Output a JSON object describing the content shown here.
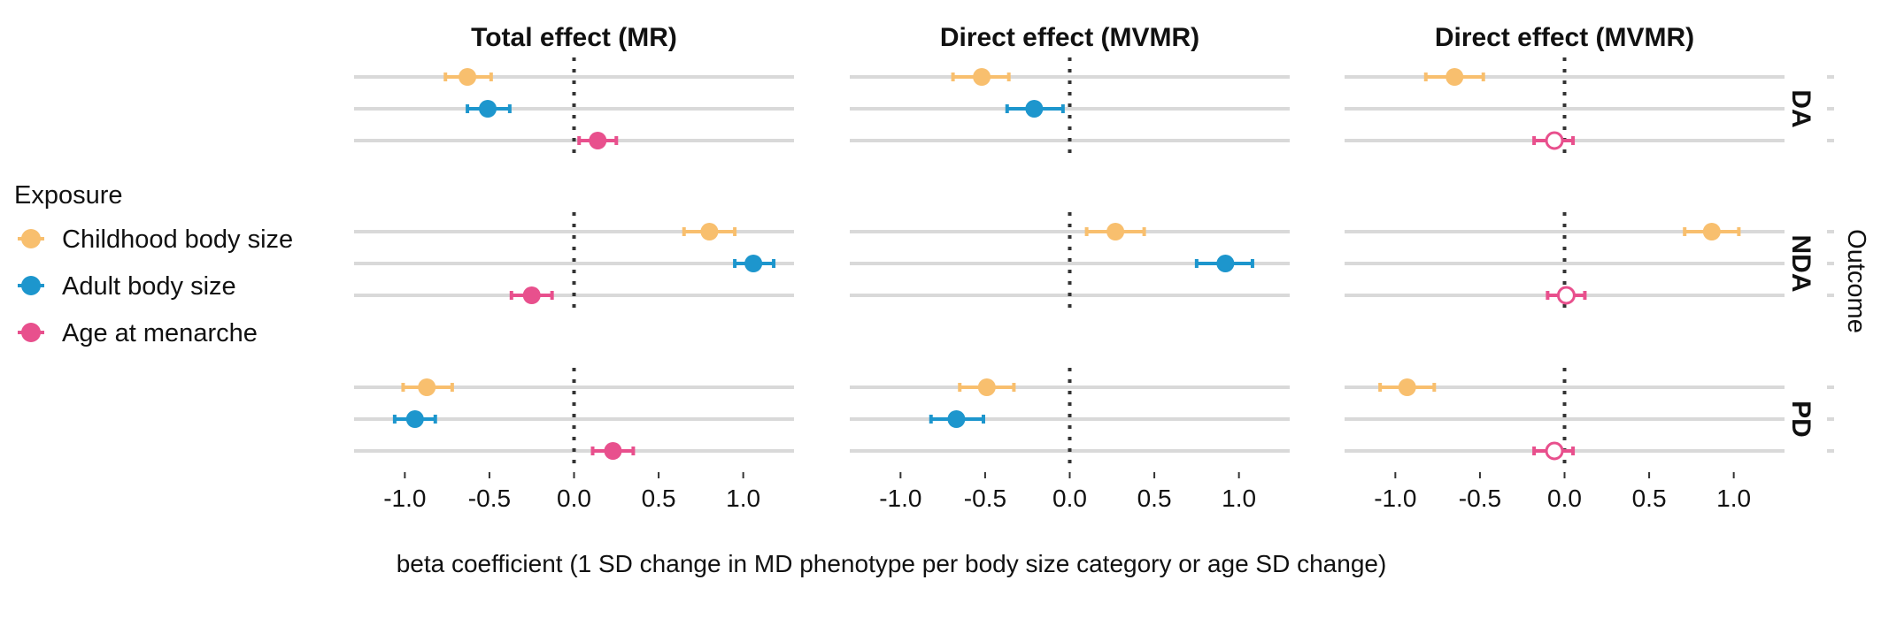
{
  "chart_data": {
    "type": "scatter",
    "subtype": "forest-plot-faceted",
    "panels": [
      "Total effect (MR)",
      "Direct effect (MVMR)",
      "Direct effect (MVMR)"
    ],
    "outcomes": [
      "DA",
      "NDA",
      "PD"
    ],
    "outcome_axis_label": "Outcome",
    "xlabel": "beta coefficient (1 SD change in MD phenotype per body size category or age SD change)",
    "xlim": [
      -1.3,
      1.3
    ],
    "xticks": [
      -1.0,
      -0.5,
      0.0,
      0.5,
      1.0
    ],
    "xtick_labels": [
      "-1.0",
      "-0.5",
      "0.0",
      "0.5",
      "1.0"
    ],
    "reference_line": 0,
    "grid": "horizontal major lines",
    "legend": {
      "title": "Exposure",
      "position": "left",
      "entries": [
        {
          "label": "Childhood body size",
          "color": "#F8BF6E"
        },
        {
          "label": "Adult body size",
          "color": "#1D96CD"
        },
        {
          "label": "Age at menarche",
          "color": "#E8508D"
        }
      ]
    },
    "exposure_order": [
      "Childhood body size",
      "Adult body size",
      "Age at menarche"
    ],
    "series": [
      {
        "name": "Childhood body size",
        "color": "#F8BF6E",
        "values": [
          [
            {
              "est": -0.63,
              "lo": -0.76,
              "hi": -0.49,
              "filled": true
            },
            {
              "est": 0.8,
              "lo": 0.65,
              "hi": 0.95,
              "filled": true
            },
            {
              "est": -0.87,
              "lo": -1.01,
              "hi": -0.72,
              "filled": true
            }
          ],
          [
            {
              "est": -0.52,
              "lo": -0.69,
              "hi": -0.36,
              "filled": true
            },
            {
              "est": 0.27,
              "lo": 0.1,
              "hi": 0.44,
              "filled": true
            },
            {
              "est": -0.49,
              "lo": -0.65,
              "hi": -0.33,
              "filled": true
            }
          ],
          [
            {
              "est": -0.65,
              "lo": -0.82,
              "hi": -0.48,
              "filled": true
            },
            {
              "est": 0.87,
              "lo": 0.71,
              "hi": 1.03,
              "filled": true
            },
            {
              "est": -0.93,
              "lo": -1.09,
              "hi": -0.77,
              "filled": true
            }
          ]
        ]
      },
      {
        "name": "Adult body size",
        "color": "#1D96CD",
        "values": [
          [
            {
              "est": -0.51,
              "lo": -0.63,
              "hi": -0.38,
              "filled": true
            },
            {
              "est": 1.06,
              "lo": 0.95,
              "hi": 1.18,
              "filled": true
            },
            {
              "est": -0.94,
              "lo": -1.06,
              "hi": -0.82,
              "filled": true
            }
          ],
          [
            {
              "est": -0.21,
              "lo": -0.37,
              "hi": -0.04,
              "filled": true
            },
            {
              "est": 0.92,
              "lo": 0.75,
              "hi": 1.08,
              "filled": true
            },
            {
              "est": -0.67,
              "lo": -0.82,
              "hi": -0.51,
              "filled": true
            }
          ],
          null
        ]
      },
      {
        "name": "Age at menarche",
        "color": "#E8508D",
        "values": [
          [
            {
              "est": 0.14,
              "lo": 0.03,
              "hi": 0.25,
              "filled": true
            },
            {
              "est": -0.25,
              "lo": -0.37,
              "hi": -0.13,
              "filled": true
            },
            {
              "est": 0.23,
              "lo": 0.11,
              "hi": 0.35,
              "filled": true
            }
          ],
          null,
          [
            {
              "est": -0.06,
              "lo": -0.18,
              "hi": 0.05,
              "filled": false
            },
            {
              "est": 0.01,
              "lo": -0.1,
              "hi": 0.12,
              "filled": false
            },
            {
              "est": -0.06,
              "lo": -0.18,
              "hi": 0.05,
              "filled": false
            }
          ]
        ]
      }
    ]
  }
}
